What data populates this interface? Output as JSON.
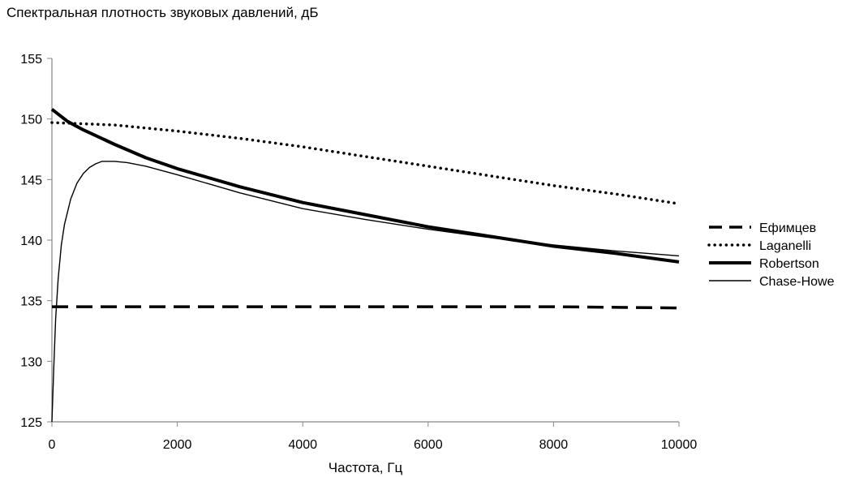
{
  "chart_data": {
    "type": "line",
    "title": "Спектральная плотность звуковых давлений, дБ",
    "xlabel": "Частота, Гц",
    "ylabel": "",
    "xlim": [
      0,
      10000
    ],
    "ylim": [
      125,
      155
    ],
    "x_ticks": [
      0,
      2000,
      4000,
      6000,
      8000,
      10000
    ],
    "y_ticks": [
      125,
      130,
      135,
      140,
      145,
      150,
      155
    ],
    "grid": false,
    "legend_position": "right",
    "series": [
      {
        "name": "Ефимцев",
        "style": "dashed",
        "color": "#000000",
        "x": [
          0,
          2000,
          4000,
          6000,
          8000,
          10000
        ],
        "y": [
          134.5,
          134.5,
          134.5,
          134.5,
          134.5,
          134.4
        ]
      },
      {
        "name": "Laganelli",
        "style": "dotted",
        "color": "#000000",
        "x": [
          0,
          1000,
          2000,
          3000,
          4000,
          5000,
          6000,
          7000,
          8000,
          9000,
          10000
        ],
        "y": [
          149.7,
          149.5,
          149.0,
          148.4,
          147.7,
          146.9,
          146.1,
          145.3,
          144.5,
          143.8,
          143.0
        ]
      },
      {
        "name": "Robertson",
        "style": "thick",
        "color": "#000000",
        "x": [
          0,
          100,
          250,
          500,
          1000,
          1500,
          2000,
          3000,
          4000,
          5000,
          6000,
          7000,
          8000,
          9000,
          10000
        ],
        "y": [
          150.8,
          150.4,
          149.8,
          149.1,
          147.9,
          146.8,
          145.9,
          144.4,
          143.1,
          142.1,
          141.1,
          140.3,
          139.5,
          138.9,
          138.2
        ]
      },
      {
        "name": "Chase-Howe",
        "style": "thin",
        "color": "#000000",
        "x": [
          0,
          30,
          60,
          100,
          150,
          200,
          300,
          400,
          500,
          600,
          700,
          800,
          900,
          1000,
          1200,
          1500,
          2000,
          3000,
          4000,
          5000,
          6000,
          7000,
          8000,
          9000,
          10000
        ],
        "y": [
          125.0,
          129.5,
          133.5,
          136.8,
          139.6,
          141.3,
          143.4,
          144.7,
          145.5,
          146.0,
          146.3,
          146.5,
          146.5,
          146.5,
          146.4,
          146.1,
          145.4,
          143.9,
          142.6,
          141.7,
          140.9,
          140.2,
          139.6,
          139.1,
          138.7
        ]
      }
    ]
  }
}
